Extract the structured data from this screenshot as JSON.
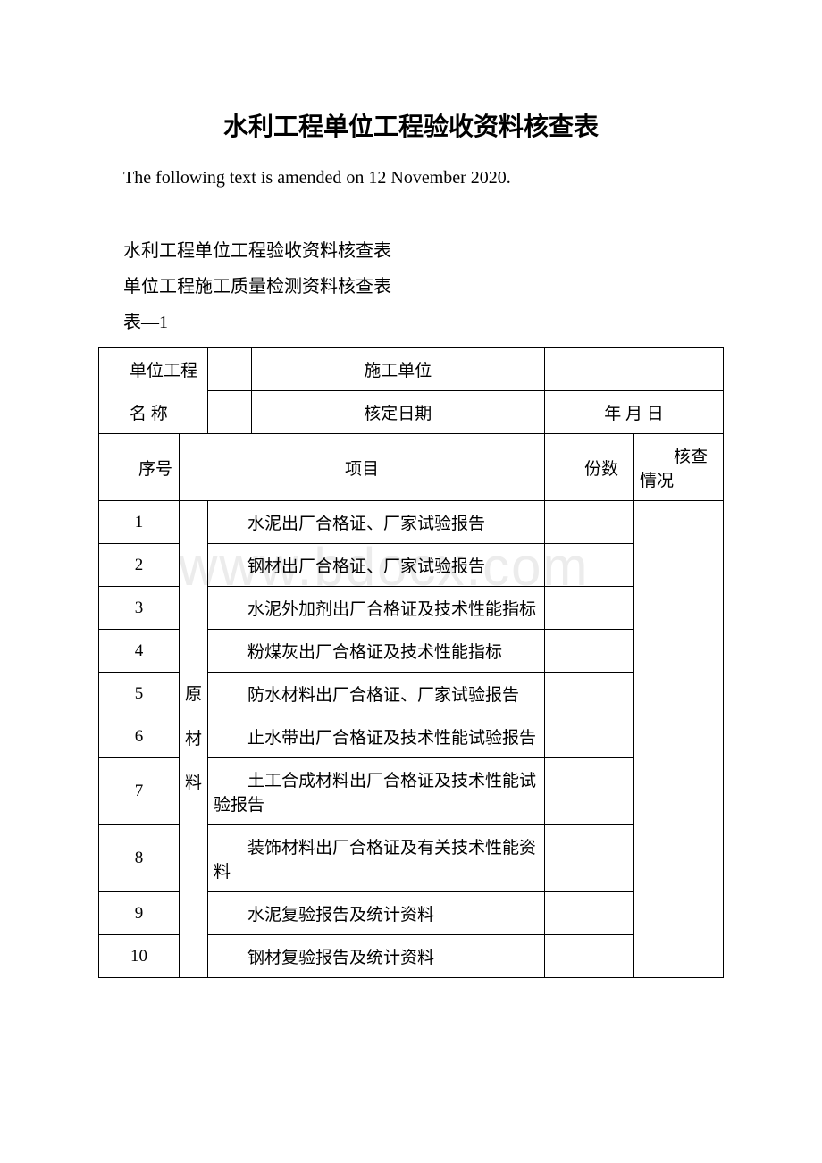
{
  "title": "水利工程单位工程验收资料核查表",
  "amended": "The following text is amended on 12 November 2020.",
  "line1": "水利工程单位工程验收资料核查表",
  "line2": "单位工程施工质量检测资料核查表",
  "line3": "表―1",
  "header": {
    "unit_project_name_label": "单位工程",
    "unit_project_name_label2": "名 称",
    "construction_unit_label": "施工单位",
    "approval_date_label": "核定日期",
    "approval_date_value": "年 月 日"
  },
  "th": {
    "seq": "序号",
    "item": "项目",
    "count": "份数",
    "check": "核查情况"
  },
  "category": {
    "raw_line1": "原",
    "raw_line2": "材",
    "raw_line3": "料"
  },
  "rows": [
    {
      "seq": "1",
      "item": "水泥出厂合格证、厂家试验报告"
    },
    {
      "seq": "2",
      "item": "钢材出厂合格证、厂家试验报告"
    },
    {
      "seq": "3",
      "item": "水泥外加剂出厂合格证及技术性能指标"
    },
    {
      "seq": "4",
      "item": "粉煤灰出厂合格证及技术性能指标"
    },
    {
      "seq": "5",
      "item": "防水材料出厂合格证、厂家试验报告"
    },
    {
      "seq": "6",
      "item": "止水带出厂合格证及技术性能试验报告"
    },
    {
      "seq": "7",
      "item": "土工合成材料出厂合格证及技术性能试验报告"
    },
    {
      "seq": "8",
      "item": "装饰材料出厂合格证及有关技术性能资料"
    },
    {
      "seq": "9",
      "item": "水泥复验报告及统计资料"
    },
    {
      "seq": "10",
      "item": "钢材复验报告及统计资料"
    }
  ],
  "watermark": "www.bdocx.com"
}
